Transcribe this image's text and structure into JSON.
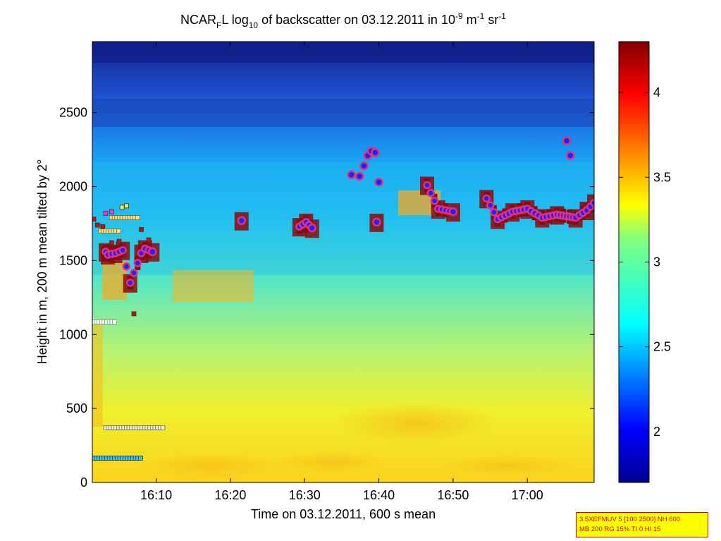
{
  "chart_data": {
    "type": "heatmap",
    "title_parts": {
      "a": "NCAR",
      "a_sub": "F",
      "b": "L log",
      "b_sub": "10",
      "c": " of backscatter on 03.12.2011 in 10",
      "c_sup": "-9",
      "d": " m",
      "d_sup": "-1",
      "e": " sr",
      "e_sup": "-1"
    },
    "xlabel": "Time on 03.12.2011, 600 s mean",
    "ylabel": "Height in m, 200 m mean tilted by 2°",
    "x_ticks": [
      "16:10",
      "16:20",
      "16:30",
      "16:40",
      "16:50",
      "17:00"
    ],
    "x_range_minutes": [
      -8.6,
      59.0
    ],
    "y_ticks": [
      0,
      500,
      1000,
      1500,
      2000,
      2500
    ],
    "y_range": [
      0,
      2980
    ],
    "colorbar": {
      "ticks": [
        2,
        2.5,
        3,
        3.5,
        4
      ],
      "range": [
        1.7,
        4.3
      ],
      "colormap": "jet"
    },
    "cloud_layer": {
      "note": "",
      "x_minutes": [
        -6.8,
        -6.5,
        -5.5,
        -4.5,
        -3.5,
        -2.0,
        -1.5,
        -0.5,
        11.5,
        19.3,
        20.2,
        21.0,
        29.7,
        36.5,
        38.0,
        40.0,
        44.5,
        46.0,
        48.0,
        50.0,
        52.0,
        54.0,
        56.5,
        58.0,
        59.0
      ],
      "y_m": [
        1560,
        1540,
        1550,
        1570,
        1350,
        1550,
        1580,
        1560,
        1770,
        1730,
        1760,
        1720,
        1760,
        2010,
        1850,
        1830,
        1920,
        1780,
        1830,
        1850,
        1790,
        1810,
        1790,
        1840,
        1890
      ]
    },
    "upper_points": {
      "x_minutes": [
        27.4,
        28.0,
        28.5,
        29.0,
        29.5,
        30.0,
        26.3,
        55.3,
        55.8
      ],
      "y_m": [
        2070,
        2140,
        2210,
        2240,
        2230,
        2030,
        2080,
        2310,
        2210
      ]
    }
  },
  "infobox": {
    "line1": "3.5XEFMUV 5 [100 2500] NH 600",
    "line2": "MB 200 RG 15% TI 0 HI 15"
  }
}
